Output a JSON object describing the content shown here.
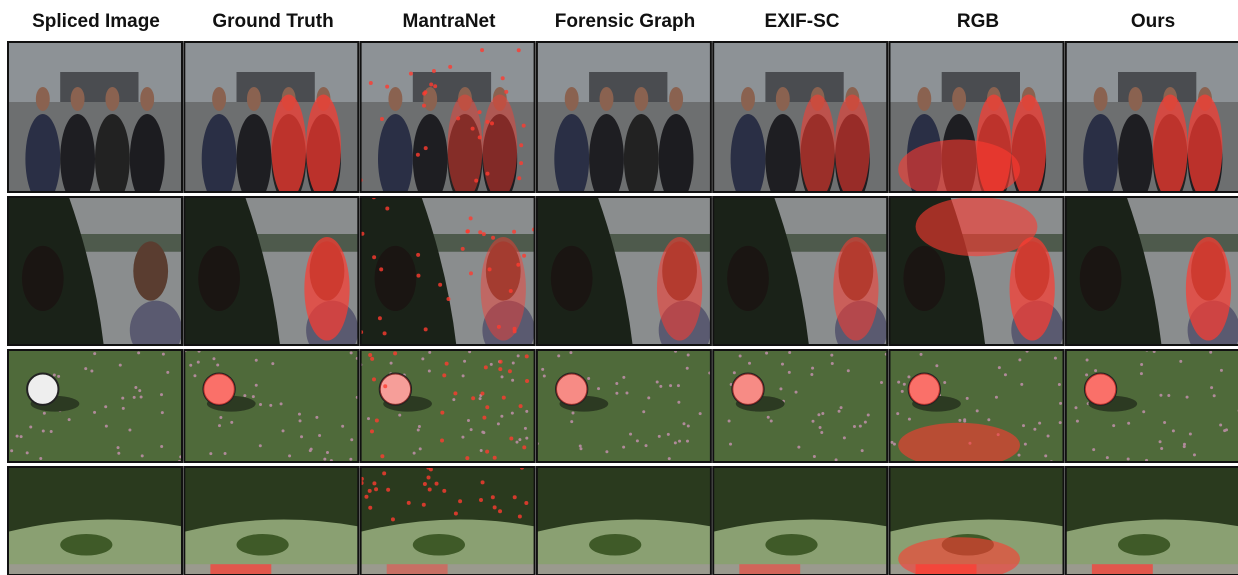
{
  "columns": [
    "Spliced Image",
    "Ground Truth",
    "MantraNet",
    "Forensic Graph",
    "EXIF-SC",
    "RGB",
    "Ours"
  ]
}
